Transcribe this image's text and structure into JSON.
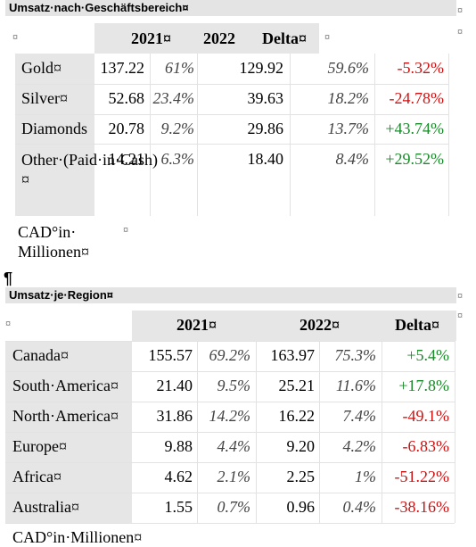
{
  "section1": {
    "title": "Umsatz·nach·Geschäftsbereich¤",
    "headers": [
      "2021¤",
      "2022",
      "Delta¤"
    ],
    "rows": [
      {
        "label": "Gold¤",
        "v2021": "137.22",
        "p2021": "61%",
        "v2022": "129.92",
        "p2022": "59.6%",
        "delta": "-5.32%",
        "sign": "neg"
      },
      {
        "label": "Silver¤",
        "v2021": "52.68",
        "p2021": "23.4%",
        "v2022": "39.63",
        "p2022": "18.2%",
        "delta": "-24.78%",
        "sign": "neg"
      },
      {
        "label": "Diamonds",
        "v2021": "20.78",
        "p2021": "9.2%",
        "v2022": "29.86",
        "p2022": "13.7%",
        "delta": "+43.74%",
        "sign": "pos"
      },
      {
        "label": "Other·(Paid·in·Cash)¤",
        "v2021": "14.21",
        "p2021": "6.3%",
        "v2022": "18.40",
        "p2022": "8.4%",
        "delta": "+29.52%",
        "sign": "pos"
      }
    ],
    "footnote_line1": "CAD°in·",
    "footnote_line2": "Millionen¤"
  },
  "pilcrow": "¶",
  "section2": {
    "title": "Umsatz·je·Region¤",
    "headers": [
      "2021¤",
      "2022¤",
      "Delta¤"
    ],
    "rows": [
      {
        "label": "Canada¤",
        "v2021": "155.57",
        "p2021": "69.2%",
        "v2022": "163.97",
        "p2022": "75.3%",
        "delta": "+5.4%",
        "sign": "pos"
      },
      {
        "label": "South·America¤",
        "v2021": "21.40",
        "p2021": "9.5%",
        "v2022": "25.21",
        "p2022": "11.6%",
        "delta": "+17.8%",
        "sign": "pos"
      },
      {
        "label": "North·America¤",
        "v2021": "31.86",
        "p2021": "14.2%",
        "v2022": "16.22",
        "p2022": "7.4%",
        "delta": "-49.1%",
        "sign": "neg"
      },
      {
        "label": "Europe¤",
        "v2021": "9.88",
        "p2021": "4.4%",
        "v2022": "9.20",
        "p2022": "4.2%",
        "delta": "-6.83%",
        "sign": "neg"
      },
      {
        "label": "Africa¤",
        "v2021": "4.62",
        "p2021": "2.1%",
        "v2022": "2.25",
        "p2022": "1%",
        "delta": "-51.22%",
        "sign": "neg"
      },
      {
        "label": "Australia¤",
        "v2021": "1.55",
        "p2021": "0.7%",
        "v2022": "0.96",
        "p2022": "0.4%",
        "delta": "-38.16%",
        "sign": "neg"
      }
    ],
    "footnote": "CAD°in·Millionen¤"
  },
  "cell_marker": "¤",
  "colors": {
    "negative": "#d01010",
    "positive": "#1a8a2a",
    "header_bg": "#e4e4e4"
  }
}
